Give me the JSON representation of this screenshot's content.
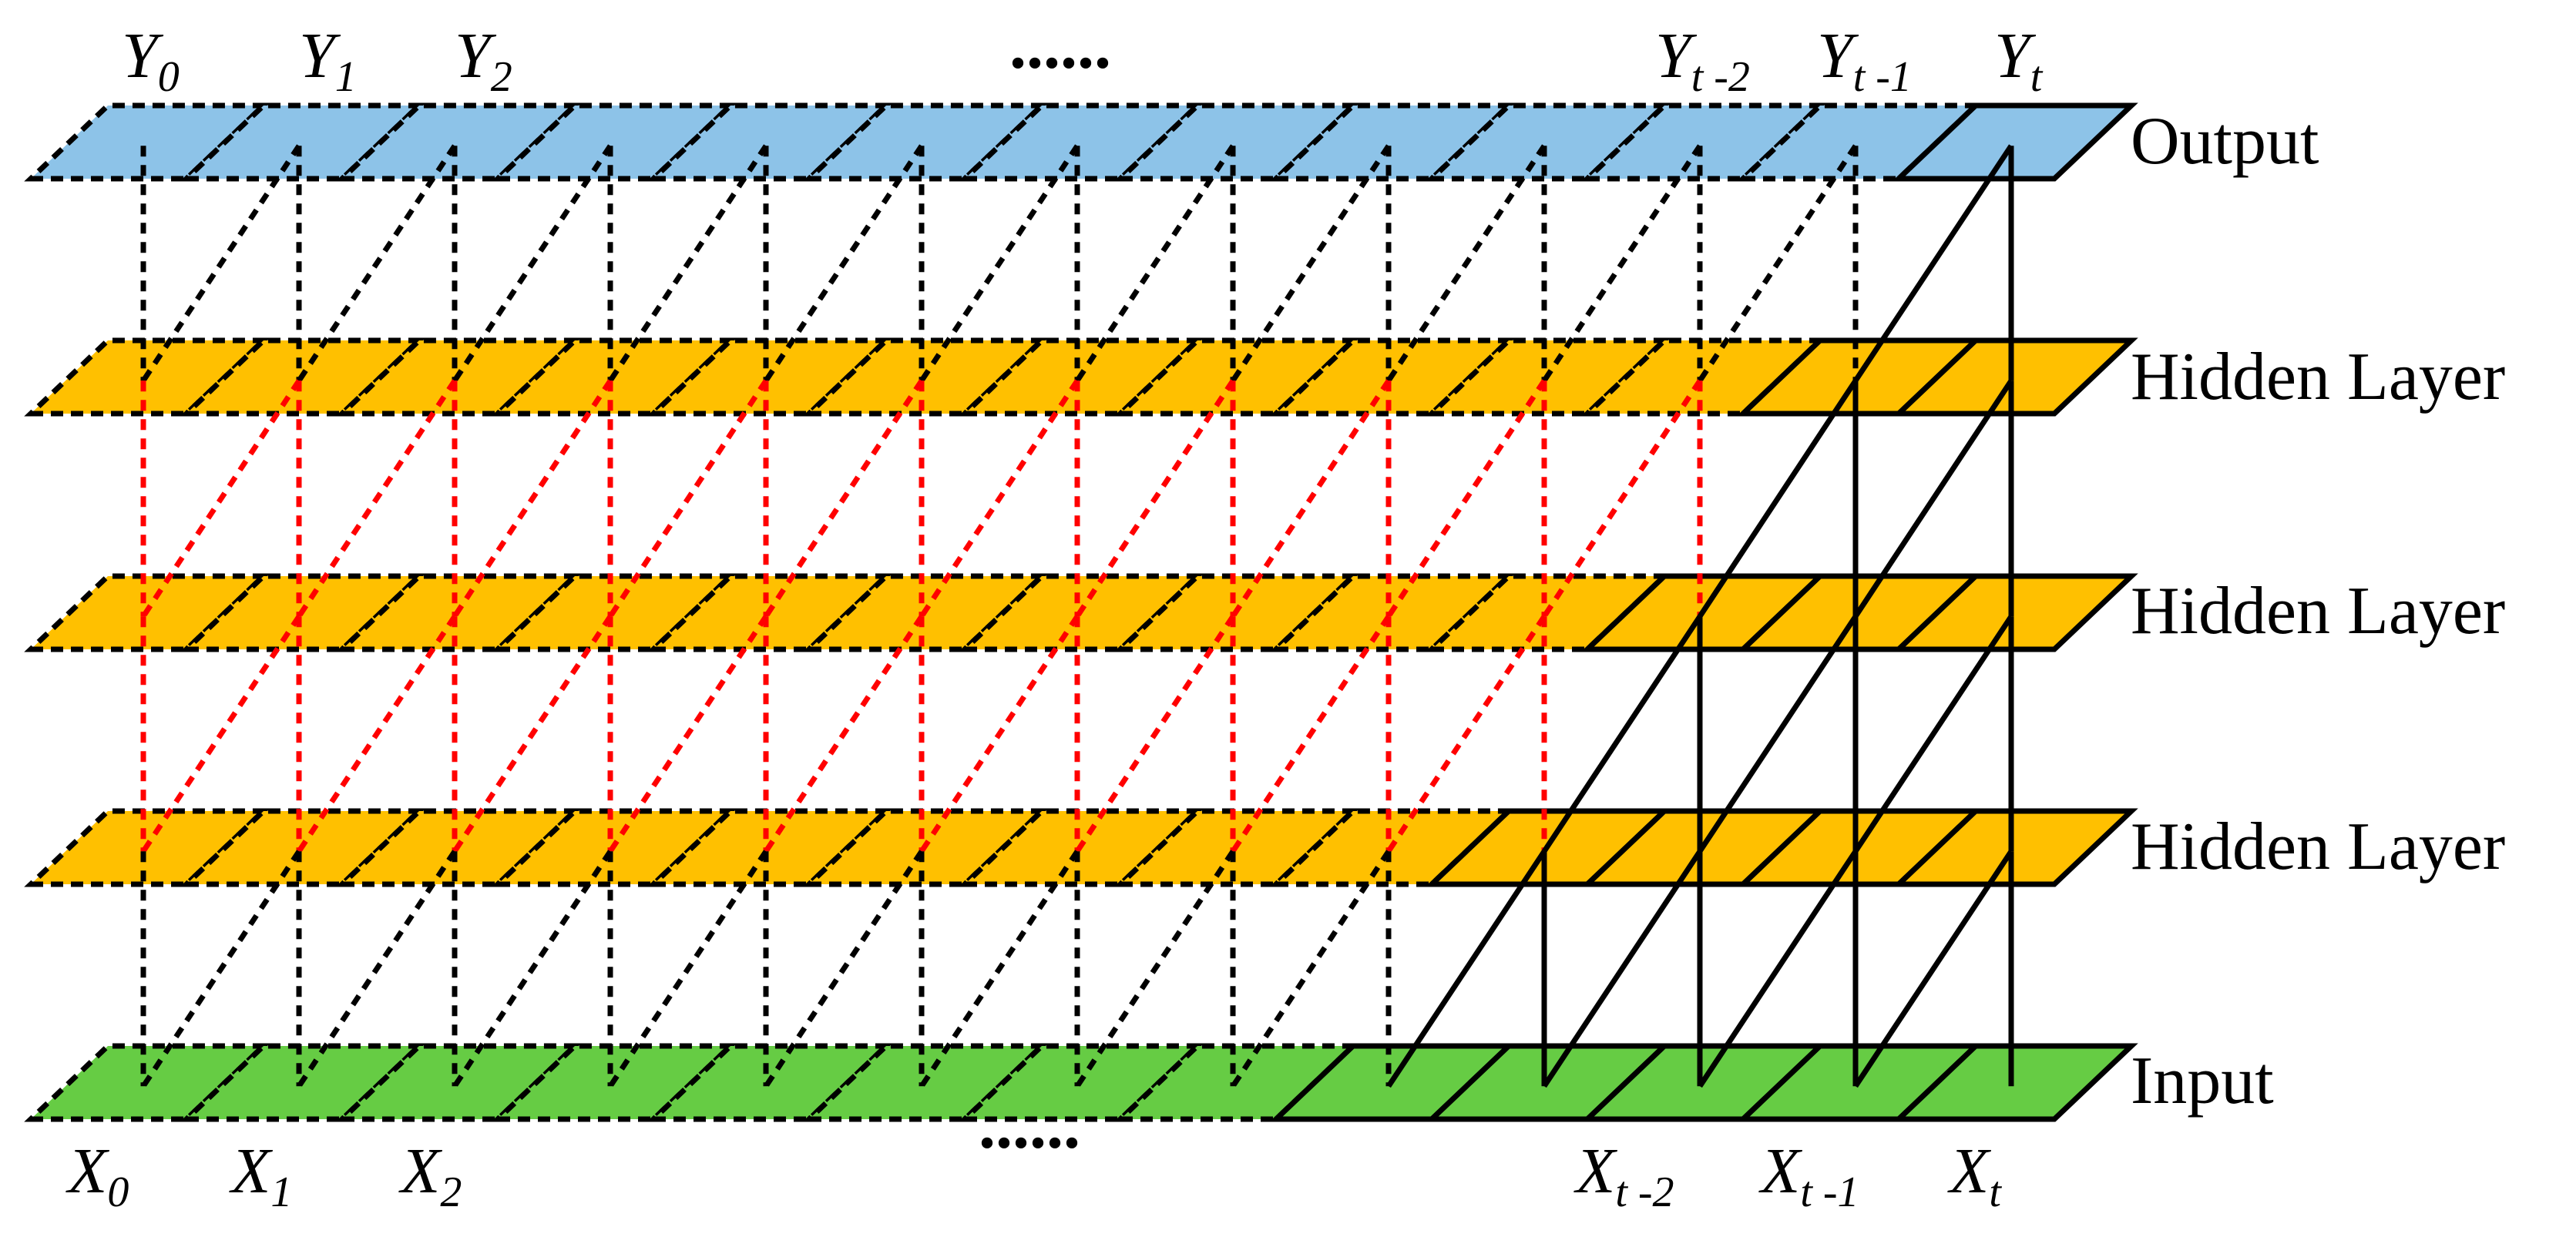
{
  "diagram": {
    "layers": [
      {
        "id": "output",
        "label": "Output",
        "color": "#8DC3E8"
      },
      {
        "id": "hidden3",
        "label": "Hidden Layer",
        "color": "#FFC000"
      },
      {
        "id": "hidden2",
        "label": "Hidden Layer",
        "color": "#FFC000"
      },
      {
        "id": "hidden1",
        "label": "Hidden Layer",
        "color": "#FFC000"
      },
      {
        "id": "input",
        "label": "Input",
        "color": "#66CC44"
      }
    ],
    "top_labels": [
      {
        "base": "Y",
        "sub": "0"
      },
      {
        "base": "Y",
        "sub": "1"
      },
      {
        "base": "Y",
        "sub": "2"
      },
      {
        "base": "Y",
        "sub": "t -2"
      },
      {
        "base": "Y",
        "sub": "t -1"
      },
      {
        "base": "Y",
        "sub": "t"
      }
    ],
    "bottom_labels": [
      {
        "base": "X",
        "sub": "0"
      },
      {
        "base": "X",
        "sub": "1"
      },
      {
        "base": "X",
        "sub": "2"
      },
      {
        "base": "X",
        "sub": "t -2"
      },
      {
        "base": "X",
        "sub": "t -1"
      },
      {
        "base": "X",
        "sub": "t"
      }
    ],
    "ellipsis_top": "......",
    "ellipsis_bottom": "......",
    "colors": {
      "connection_outer": "#000000",
      "connection_hidden": "#FF0000",
      "stroke": "#000000"
    }
  }
}
